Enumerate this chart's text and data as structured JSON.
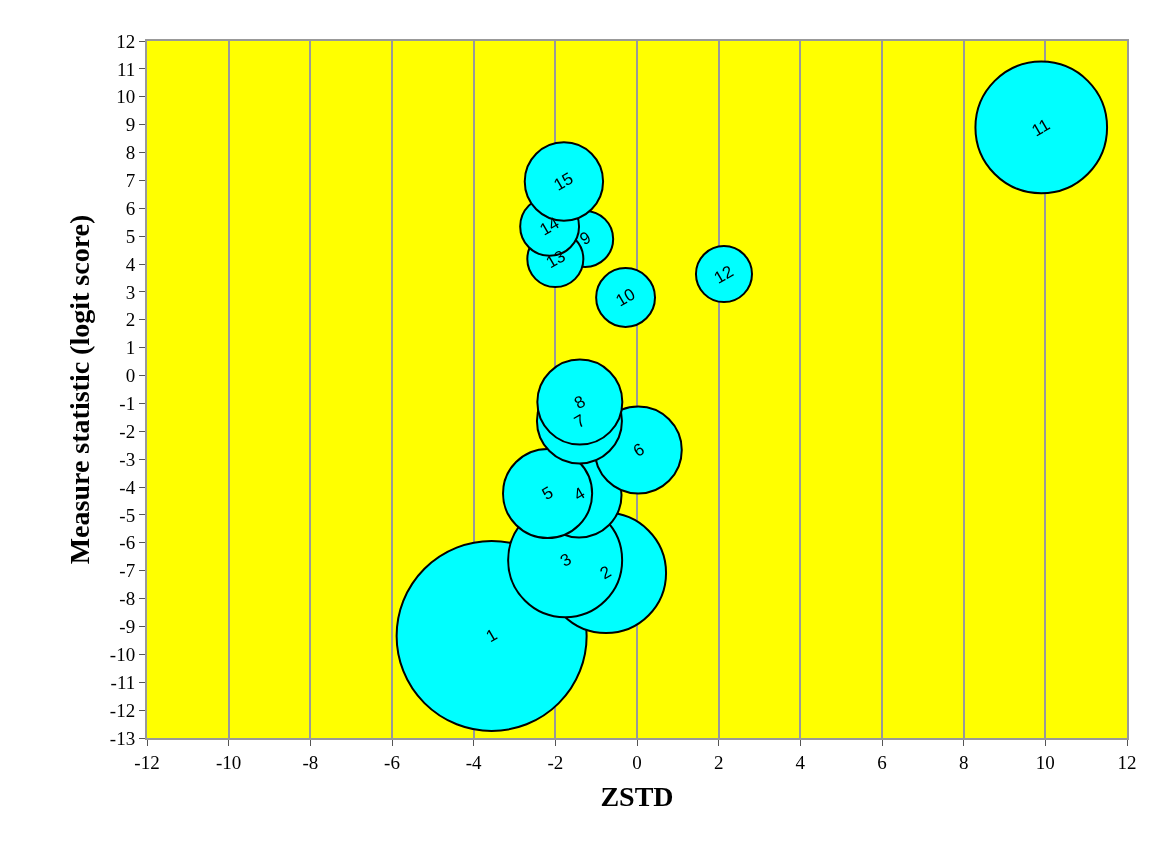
{
  "chart_data": {
    "type": "bubble",
    "xlabel": "ZSTD",
    "ylabel": "Measure statistic (logit score)",
    "x": [
      -3.56,
      -0.76,
      -1.76,
      -1.42,
      -2.19,
      0.03,
      -1.41,
      -1.4,
      -1.27,
      -0.28,
      9.9,
      2.13,
      -2.0,
      -2.14,
      -1.79
    ],
    "values": [
      -9.34,
      -7.08,
      -6.62,
      -4.28,
      -4.23,
      -2.67,
      -1.63,
      -0.95,
      4.9,
      2.8,
      8.9,
      3.64,
      4.18,
      5.35,
      6.96
    ],
    "sizes": [
      1,
      0.4,
      0.36,
      0.2,
      0.22,
      0.21,
      0.2,
      0.2,
      0.087,
      0.096,
      0.48,
      0.087,
      0.087,
      0.096,
      0.17
    ],
    "annotations": [
      {
        "text": "1",
        "x": -3.56,
        "y": -9.34
      },
      {
        "text": "2",
        "x": -0.76,
        "y": -7.08
      },
      {
        "text": "3",
        "x": -1.76,
        "y": -6.62
      },
      {
        "text": "4",
        "x": -1.42,
        "y": -4.28
      },
      {
        "text": "5",
        "x": -2.19,
        "y": -4.23
      },
      {
        "text": "6",
        "x": 0.03,
        "y": -2.67
      },
      {
        "text": "7",
        "x": -1.41,
        "y": -1.63
      },
      {
        "text": "8",
        "x": -1.4,
        "y": -0.95
      },
      {
        "text": "9",
        "x": -1.27,
        "y": 4.9
      },
      {
        "text": "10",
        "x": -0.28,
        "y": 2.8
      },
      {
        "text": "11",
        "x": 9.9,
        "y": 8.9
      },
      {
        "text": "12",
        "x": 2.13,
        "y": 3.64
      },
      {
        "text": "13",
        "x": -2.0,
        "y": 4.18
      },
      {
        "text": "14",
        "x": -2.14,
        "y": 5.35
      },
      {
        "text": "15",
        "x": -1.79,
        "y": 6.96
      }
    ],
    "color": "#00ffff",
    "xlim": [
      -12,
      12
    ],
    "xticks": [
      -12,
      -10,
      -8,
      -6,
      -4,
      -2,
      0,
      2,
      4,
      6,
      8,
      10,
      12
    ],
    "ylim": [
      -13,
      12
    ],
    "yticks": [
      -13,
      -12,
      -11,
      -10,
      -9,
      -8,
      -7,
      -6,
      -5,
      -4,
      -3,
      -2,
      -1,
      0,
      1,
      2,
      3,
      4,
      5,
      6,
      7,
      8,
      9,
      10,
      11,
      12
    ],
    "grid": "x"
  }
}
